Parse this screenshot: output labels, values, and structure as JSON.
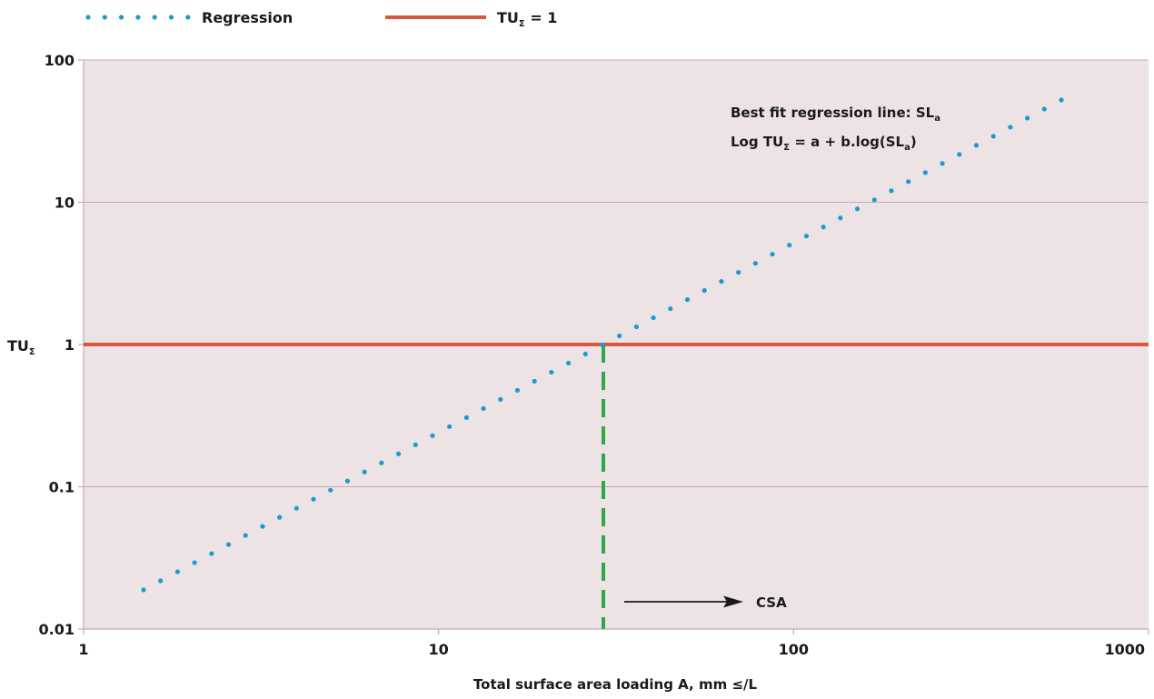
{
  "chart_data": {
    "type": "scatter",
    "title": "",
    "xlabel": "Total surface area loading A, mm ≤/L",
    "ylabel_main": "TU",
    "ylabel_sub": "Σ",
    "x_scale": "log",
    "y_scale": "log",
    "xlim": [
      1,
      1000
    ],
    "ylim": [
      0.01,
      100
    ],
    "x_ticks": [
      {
        "value": 1,
        "label": "1"
      },
      {
        "value": 10,
        "label": "10"
      },
      {
        "value": 100,
        "label": "100"
      },
      {
        "value": 1000,
        "label": "1000"
      }
    ],
    "y_ticks": [
      {
        "value": 0.01,
        "label": "0.01"
      },
      {
        "value": 0.1,
        "label": "0.1"
      },
      {
        "value": 1,
        "label": "1"
      },
      {
        "value": 10,
        "label": "10"
      },
      {
        "value": 100,
        "label": "100"
      }
    ],
    "grid": {
      "horizontal": true,
      "vertical": false
    },
    "legend_position": "top-left, above plot",
    "series": [
      {
        "name": "Regression",
        "style": "dotted",
        "color": "#1a9bd0",
        "points": [
          [
            1.5,
            0.019
          ],
          [
            1.64,
            0.0215
          ],
          [
            1.79,
            0.0245
          ],
          [
            1.96,
            0.0285
          ],
          [
            2.14,
            0.033
          ],
          [
            2.34,
            0.0385
          ],
          [
            2.56,
            0.045
          ],
          [
            2.8,
            0.052
          ],
          [
            3.06,
            0.06
          ],
          [
            3.35,
            0.069
          ],
          [
            3.66,
            0.08
          ],
          [
            4.0,
            0.093
          ],
          [
            4.37,
            0.107
          ],
          [
            4.78,
            0.124
          ],
          [
            5.23,
            0.144
          ],
          [
            5.71,
            0.166
          ],
          [
            6.24,
            0.193
          ],
          [
            6.83,
            0.223
          ],
          [
            7.46,
            0.258
          ],
          [
            8.16,
            0.298
          ],
          [
            8.92,
            0.345
          ],
          [
            9.75,
            0.4
          ],
          [
            10.66,
            0.462
          ],
          [
            11.65,
            0.535
          ],
          [
            12.74,
            0.62
          ],
          [
            13.93,
            0.716
          ],
          [
            15.22,
            0.83
          ],
          [
            16.64,
            0.96
          ],
          [
            18.19,
            1.11
          ],
          [
            19.89,
            1.285
          ],
          [
            21.74,
            1.487
          ],
          [
            23.77,
            1.72
          ],
          [
            25.99,
            1.99
          ],
          [
            28.41,
            2.3
          ],
          [
            31.06,
            2.67
          ],
          [
            33.95,
            3.09
          ],
          [
            37.12,
            3.57
          ],
          [
            40.58,
            4.13
          ],
          [
            44.36,
            4.78
          ],
          [
            48.5,
            5.53
          ],
          [
            53.0,
            6.4
          ],
          [
            57.95,
            7.41
          ],
          [
            63.36,
            8.57
          ],
          [
            69.26,
            9.92
          ],
          [
            75.71,
            11.48
          ],
          [
            82.77,
            13.28
          ],
          [
            90.49,
            15.37
          ],
          [
            98.93,
            17.78
          ],
          [
            108.15,
            20.58
          ],
          [
            118.23,
            23.81
          ],
          [
            129.25,
            27.55
          ],
          [
            141.3,
            31.88
          ],
          [
            154.47,
            36.89
          ],
          [
            168.87,
            42.69
          ],
          [
            184.6,
            49.4
          ]
        ]
      },
      {
        "name": "TU",
        "name_sub": "Σ",
        "name_suffix": " = 1",
        "style": "solid",
        "color": "#d9573a",
        "y_constant": 1
      }
    ],
    "reference_line": {
      "x": 20,
      "color": "#2ea84a",
      "style": "dashed",
      "from_y": 0.01,
      "to_y": 1
    },
    "annotations": {
      "regression_line1": "Best fit regression line: SL",
      "regression_line1_sub": "a",
      "regression_line2_prefix": "Log TU",
      "regression_line2_sub": "Σ",
      "regression_line2_mid": " = a + b.log(SL",
      "regression_line2_sub2": "a",
      "regression_line2_end": ")",
      "arrow_label": "CSA"
    },
    "colors": {
      "plot_background": "#ede3e5",
      "gridline": "#c9a8b0",
      "axis": "#c9a8b0"
    }
  }
}
